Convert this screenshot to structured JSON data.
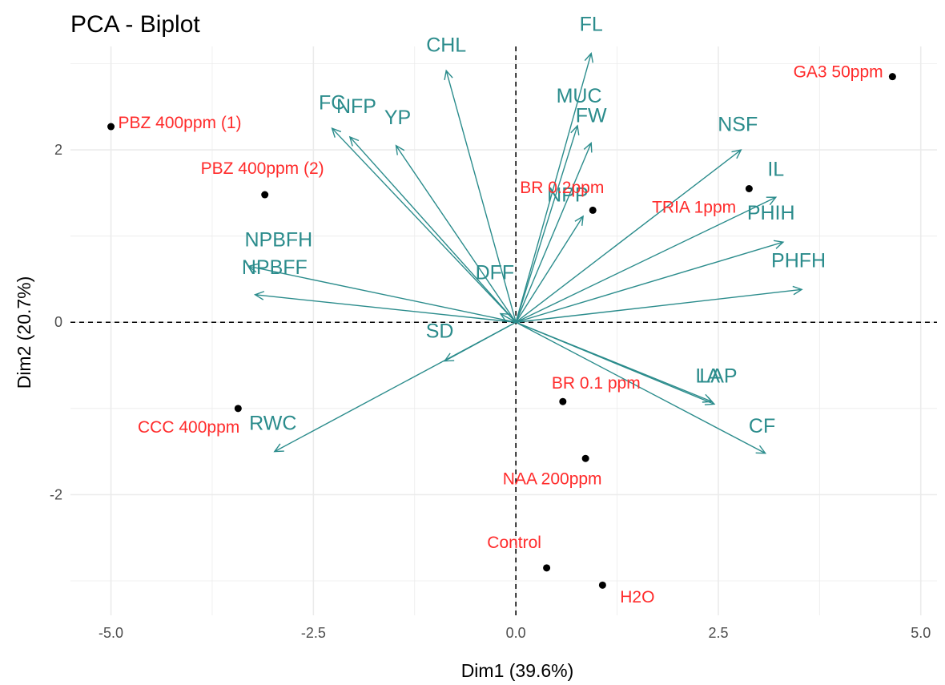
{
  "chart_data": {
    "type": "scatter",
    "subtype": "pca-biplot",
    "title": "PCA - Biplot",
    "xlabel": "Dim1 (39.6%)",
    "ylabel": "Dim2 (20.7%)",
    "xlim": [
      -5.5,
      5.2
    ],
    "ylim": [
      -3.4,
      3.2
    ],
    "xticks": [
      -5.0,
      -2.5,
      0.0,
      2.5,
      5.0
    ],
    "xtick_labels": [
      "-5.0",
      "-2.5",
      "0.0",
      "2.5",
      "5.0"
    ],
    "yticks": [
      -2,
      0,
      2
    ],
    "ytick_labels": [
      "-2",
      "0",
      "2"
    ],
    "grid": true,
    "reference_lines": {
      "x": 0,
      "y": 0,
      "style": "dashed"
    },
    "colors": {
      "variables": "#2b8c8c",
      "individuals": "#ff2b2b",
      "points": "#000000",
      "grid": "#ebebeb"
    },
    "variables": [
      {
        "name": "FL",
        "x": 0.93,
        "y": 3.12,
        "lx": 0.93,
        "ly": 3.38
      },
      {
        "name": "CHL",
        "x": -0.86,
        "y": 2.92,
        "lx": -0.86,
        "ly": 3.14
      },
      {
        "name": "MUC",
        "x": 0.76,
        "y": 2.28,
        "lx": 0.78,
        "ly": 2.55
      },
      {
        "name": "FW",
        "x": 0.93,
        "y": 2.08,
        "lx": 0.93,
        "ly": 2.32
      },
      {
        "name": "FC",
        "x": -2.27,
        "y": 2.25,
        "lx": -2.27,
        "ly": 2.47
      },
      {
        "name": "NFP",
        "x": -2.05,
        "y": 2.15,
        "lx": -1.97,
        "ly": 2.43
      },
      {
        "name": "YP",
        "x": -1.48,
        "y": 2.05,
        "lx": -1.46,
        "ly": 2.3
      },
      {
        "name": "NSF",
        "x": 2.78,
        "y": 2.0,
        "lx": 2.74,
        "ly": 2.22
      },
      {
        "name": "IL",
        "x": 3.21,
        "y": 1.45,
        "lx": 3.21,
        "ly": 1.7
      },
      {
        "name": "NPP",
        "x": 0.83,
        "y": 1.23,
        "lx": 0.64,
        "ly": 1.4
      },
      {
        "name": "PHIH",
        "x": 3.3,
        "y": 0.93,
        "lx": 3.15,
        "ly": 1.19
      },
      {
        "name": "PHFH",
        "x": 3.53,
        "y": 0.38,
        "lx": 3.49,
        "ly": 0.64
      },
      {
        "name": "NPBFH",
        "x": -3.3,
        "y": 0.65,
        "lx": -2.93,
        "ly": 0.88
      },
      {
        "name": "NPBFF",
        "x": -3.22,
        "y": 0.32,
        "lx": -2.98,
        "ly": 0.56
      },
      {
        "name": "DFF",
        "x": -0.19,
        "y": 0.1,
        "lx": -0.26,
        "ly": 0.5
      },
      {
        "name": "SD",
        "x": -0.88,
        "y": -0.45,
        "lx": -0.94,
        "ly": -0.18
      },
      {
        "name": "LAP",
        "x": 2.45,
        "y": -0.95,
        "lx": 2.5,
        "ly": -0.7
      },
      {
        "name": "LA",
        "x": 2.42,
        "y": -0.92,
        "lx": 2.37,
        "ly": -0.7
      },
      {
        "name": "CF",
        "x": 3.08,
        "y": -1.52,
        "lx": 3.04,
        "ly": -1.28
      },
      {
        "name": "RWC",
        "x": -2.98,
        "y": -1.5,
        "lx": -3.0,
        "ly": -1.25
      }
    ],
    "individuals": [
      {
        "name": "GA3 50ppm",
        "x": 4.65,
        "y": 2.85,
        "lx": 3.98,
        "ly": 2.84
      },
      {
        "name": "PBZ 400ppm (1)",
        "x": -5.0,
        "y": 2.27,
        "lx": -4.15,
        "ly": 2.25
      },
      {
        "name": "PBZ 400ppm (2)",
        "x": -3.1,
        "y": 1.48,
        "lx": -3.13,
        "ly": 1.72
      },
      {
        "name": "BR 0.2ppm",
        "x": 0.95,
        "y": 1.3,
        "lx": 0.57,
        "ly": 1.5
      },
      {
        "name": "TRIA 1ppm",
        "x": 2.88,
        "y": 1.55,
        "lx": 2.2,
        "ly": 1.27
      },
      {
        "name": "BR 0.1 ppm",
        "x": 0.58,
        "y": -0.92,
        "lx": 0.99,
        "ly": -0.77
      },
      {
        "name": "CCC 400ppm",
        "x": -3.43,
        "y": -1.0,
        "lx": -4.04,
        "ly": -1.28
      },
      {
        "name": "NAA 200ppm",
        "x": 0.86,
        "y": -1.58,
        "lx": 0.45,
        "ly": -1.88
      },
      {
        "name": "Control",
        "x": 0.38,
        "y": -2.85,
        "lx": -0.02,
        "ly": -2.62
      },
      {
        "name": "H2O",
        "x": 1.07,
        "y": -3.05,
        "lx": 1.5,
        "ly": -3.25
      }
    ]
  }
}
